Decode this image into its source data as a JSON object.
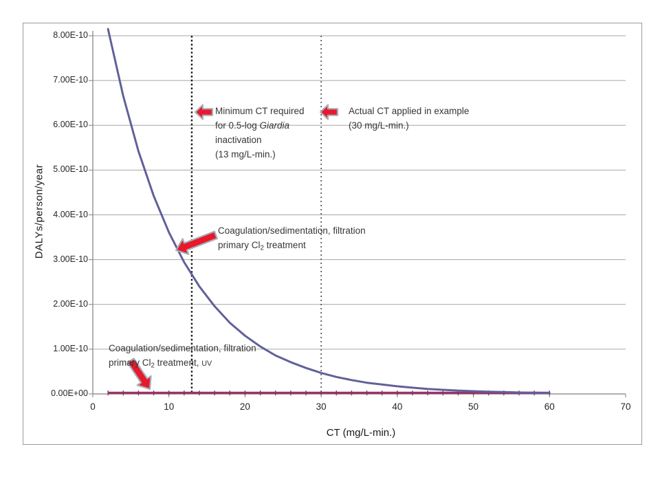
{
  "colors": {
    "curve_no_uv": "#60609A",
    "curve_uv": "#993366",
    "curve_uv_marker": "#8A2D5C",
    "gridline": "#A6A6A6",
    "axis": "#7F7F7F",
    "vline_min_ct": "#1A1A1A",
    "vline_actual_ct": "#3F4A5F",
    "arrow_fill": "#E8192C",
    "arrow_stroke": "#A6B0BC"
  },
  "axes": {
    "x_title": "CT (mg/L-min.)",
    "y_title": "DALYs/person/year",
    "x_tick_labels": [
      "0",
      "10",
      "20",
      "30",
      "40",
      "50",
      "60",
      "70"
    ],
    "y_tick_labels": [
      "8.00E-10",
      "7.00E-10",
      "6.00E-10",
      "5.00E-10",
      "4.00E-10",
      "3.00E-10",
      "2.00E-10",
      "1.00E-10",
      "0.00E+00"
    ]
  },
  "annotations": {
    "min_ct": {
      "line1": "Minimum CT required",
      "line2_pre": "for 0.5-log ",
      "line2_italic": "Giardia",
      "line3": "inactivation",
      "line4": "(13 mg/L-min.)"
    },
    "actual_ct": {
      "line1": "Actual CT applied in example",
      "line2": "(30 mg/L-min.)"
    },
    "no_uv": {
      "line1": "Coagulation/sedimentation, filtration",
      "line2_pre": " primary Cl",
      "line2_sub": "2",
      "line2_post": " treatment"
    },
    "uv": {
      "line1": "Coagulation/sedimentation, filtration",
      "line2_pre": " primary Cl",
      "line2_sub": "2",
      "line2_post": " treatment, ",
      "line2_small": "UV"
    }
  },
  "chart_data": {
    "type": "line",
    "title": "",
    "xlabel": "CT (mg/L-min.)",
    "ylabel": "DALYs/person/year",
    "xlim": [
      0,
      70
    ],
    "ylim": [
      0,
      8.2e-10
    ],
    "grid": "horizontal",
    "legend": "none",
    "x": [
      2,
      4,
      6,
      8,
      10,
      12,
      14,
      16,
      18,
      20,
      22,
      24,
      26,
      28,
      30,
      32,
      34,
      36,
      38,
      40,
      42,
      44,
      46,
      48,
      50,
      52,
      54,
      56,
      58,
      60
    ],
    "series": [
      {
        "name": "Coagulation/sedimentation, filtration, primary Cl2 treatment",
        "color": "#60609A",
        "values": [
          8.15e-10,
          6.65e-10,
          5.42e-10,
          4.42e-10,
          3.61e-10,
          2.94e-10,
          2.4e-10,
          1.96e-10,
          1.59e-10,
          1.3e-10,
          1.06e-10,
          8.6e-11,
          7.1e-11,
          5.8e-11,
          4.7e-11,
          3.8e-11,
          3.1e-11,
          2.5e-11,
          2.1e-11,
          1.7e-11,
          1.4e-11,
          1.1e-11,
          9.2e-12,
          7.5e-12,
          6.1e-12,
          5e-12,
          4.1e-12,
          3.3e-12,
          2.7e-12,
          2.2e-12
        ]
      },
      {
        "name": "Coagulation/sedimentation, filtration, primary Cl2 treatment, UV",
        "color": "#993366",
        "values": [
          0,
          0,
          0,
          0,
          0,
          0,
          0,
          0,
          0,
          0,
          0,
          0,
          0,
          0,
          0,
          0,
          0,
          0,
          0,
          0,
          0,
          0,
          0,
          0,
          0,
          0,
          0,
          0,
          0,
          0
        ]
      }
    ],
    "vlines": [
      {
        "x": 13,
        "style": "dotted",
        "color": "#1A1A1A",
        "label": "Minimum CT required for 0.5-log Giardia inactivation (13 mg/L-min.)"
      },
      {
        "x": 30,
        "style": "dotted",
        "color": "#3F4A5F",
        "label": "Actual CT applied in example (30 mg/L-min.)"
      }
    ],
    "y_gridline_step": 1e-10
  }
}
